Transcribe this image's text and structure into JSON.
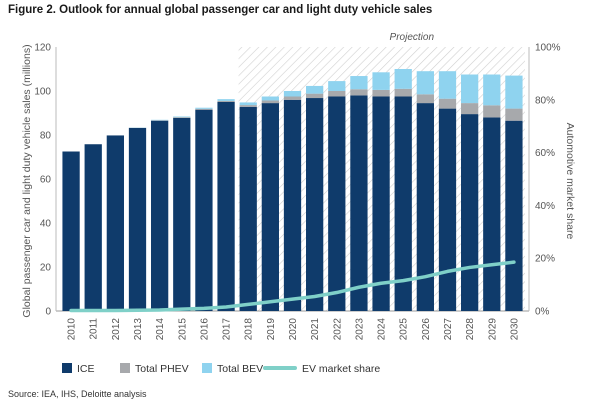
{
  "figure": {
    "title": "Figure 2. Outlook for annual global passenger car and light duty vehicle sales",
    "source": "Source: IEA, IHS, Deloitte analysis"
  },
  "colors": {
    "ice": "#0f3b6b",
    "phev": "#a7a9ac",
    "bev": "#8fd3ef",
    "ev_share": "#7fd0c8",
    "grid": "#d9d9d9",
    "hatch": "#cfcfcf"
  },
  "chart_data": {
    "type": "bar",
    "stacked": true,
    "categories": [
      "2010",
      "2011",
      "2012",
      "2013",
      "2014",
      "2015",
      "2016",
      "2017",
      "2018",
      "2019",
      "2020",
      "2021",
      "2022",
      "2023",
      "2024",
      "2025",
      "2026",
      "2027",
      "2028",
      "2029",
      "2030"
    ],
    "series": [
      {
        "name": "ICE",
        "type": "bar",
        "values": [
          72.5,
          75.8,
          79.8,
          83.2,
          86.5,
          87.8,
          91.5,
          95.0,
          92.8,
          94.5,
          96.0,
          96.8,
          97.5,
          98.0,
          97.5,
          97.5,
          94.5,
          92.0,
          89.5,
          88.0,
          86.5
        ]
      },
      {
        "name": "Total PHEV",
        "type": "bar",
        "values": [
          0.0,
          0.0,
          0.0,
          0.1,
          0.2,
          0.3,
          0.4,
          0.5,
          0.8,
          1.2,
          1.5,
          2.0,
          2.5,
          2.8,
          3.0,
          3.5,
          4.0,
          4.5,
          5.0,
          5.5,
          5.5
        ]
      },
      {
        "name": "Total BEV",
        "type": "bar",
        "values": [
          0.0,
          0.0,
          0.0,
          0.1,
          0.2,
          0.3,
          0.5,
          0.8,
          1.2,
          1.8,
          2.5,
          3.5,
          4.5,
          6.0,
          8.0,
          9.0,
          10.5,
          12.5,
          13.0,
          14.0,
          15.0
        ]
      },
      {
        "name": "EV market share",
        "type": "line",
        "axis": "right",
        "values": [
          0.2,
          0.2,
          0.2,
          0.3,
          0.4,
          0.7,
          1.0,
          1.5,
          2.5,
          3.5,
          4.5,
          5.5,
          7.0,
          9.0,
          10.5,
          11.5,
          13.0,
          15.0,
          16.5,
          17.5,
          18.5
        ]
      }
    ],
    "title": "Figure 2. Outlook for annual global passenger car and light duty vehicle sales",
    "ylabel": "Global passenger car and light duty vehicle sales (millions)",
    "y2label": "Automotive market share",
    "ylim": [
      0,
      120
    ],
    "yticks": [
      "0",
      "20",
      "40",
      "60",
      "80",
      "100",
      "120"
    ],
    "y2lim": [
      0,
      100
    ],
    "y2ticks": [
      "0%",
      "20%",
      "40%",
      "60%",
      "80%",
      "100%"
    ],
    "annotation": "Projection",
    "projection_start": "2018",
    "grid": false,
    "legend": "bottom"
  }
}
